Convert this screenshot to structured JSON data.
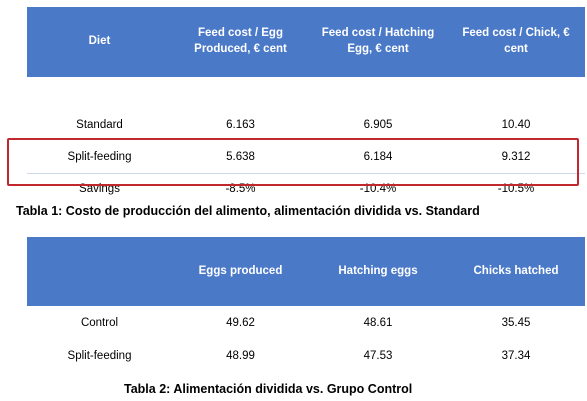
{
  "table1": {
    "headers": [
      "Diet",
      "Feed cost / Egg Produced, € cent",
      "Feed cost / Hatching Egg, € cent",
      "Feed cost / Chick, € cent"
    ],
    "rows": [
      [
        "Standard",
        "6.163",
        "6.905",
        "10.40"
      ],
      [
        "Split-feeding",
        "5.638",
        "6.184",
        "9.312"
      ],
      [
        "Savings",
        "-8.5%",
        "-10.4%",
        "-10.5%"
      ]
    ],
    "caption": "Tabla 1: Costo de producción del alimento, alimentación dividida vs. Standard",
    "highlight_color": "#c0282d"
  },
  "table2": {
    "headers": [
      "",
      "Eggs produced",
      "Hatching eggs",
      "Chicks hatched"
    ],
    "rows": [
      [
        "Control",
        "49.62",
        "48.61",
        "35.45"
      ],
      [
        "Split-feeding",
        "48.99",
        "47.53",
        "37.34"
      ]
    ],
    "caption": "Tabla 2: Alimentación dividida vs. Grupo Control"
  },
  "header_color": "#4a79c8"
}
